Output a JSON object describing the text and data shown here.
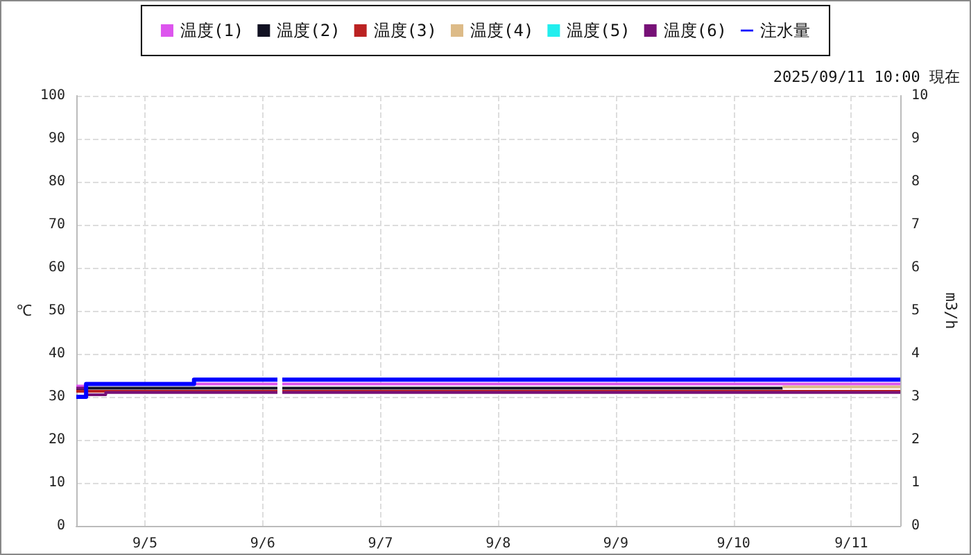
{
  "chart_data": {
    "type": "step",
    "subtitle": "2025/09/11 10:00 現在",
    "ylabel": "℃",
    "y2label": "m3/h",
    "x": [
      "2025-09-04T10:00",
      "2025-09-04T12:00",
      "2025-09-04T16:00",
      "2025-09-05T10:00",
      "2025-09-06T02:00",
      "2025-09-06T03:00",
      "2025-09-06T04:00",
      "2025-09-10T10:00",
      "2025-09-11T10:00"
    ],
    "series": [
      {
        "name": "温度(1)",
        "color": "#dd55ee",
        "values": [
          32.5,
          33,
          33,
          33,
          33,
          null,
          33,
          33,
          33
        ]
      },
      {
        "name": "温度(2)",
        "color": "#111122",
        "x": [
          "2025-09-04T10:00",
          "2025-09-04T12:00",
          "2025-09-04T16:00",
          "2025-09-05T10:00",
          "2025-09-06T02:00",
          "2025-09-06T03:00",
          "2025-09-06T04:00",
          "2025-09-10T10:00"
        ],
        "values": [
          31.5,
          32,
          32,
          32,
          32,
          null,
          32,
          32
        ]
      },
      {
        "name": "温度(3)",
        "color": "#bb2222",
        "values": [
          31.3,
          31.3,
          31.3,
          31.3,
          31.3,
          null,
          31.3,
          31.3,
          31.3
        ]
      },
      {
        "name": "温度(4)",
        "color": "#ddbb88",
        "values": [
          null,
          null,
          null,
          null,
          null,
          null,
          null,
          32.3,
          32.3
        ]
      },
      {
        "name": "温度(5)",
        "color": "#22eeee",
        "values": [
          null,
          null,
          null,
          null,
          null,
          null,
          null,
          null,
          null
        ]
      },
      {
        "name": "温度(6)",
        "color": "#771177",
        "values": [
          32,
          30.5,
          31,
          31,
          31,
          null,
          31,
          31,
          31
        ]
      },
      {
        "name": "注水量",
        "color": "#0000ff",
        "axis": "y2",
        "values": [
          3.0,
          3.3,
          3.3,
          3.4,
          3.4,
          null,
          3.4,
          3.4,
          3.4
        ]
      }
    ],
    "xlim": [
      "2025-09-04T10:00",
      "2025-09-11T10:00"
    ],
    "xticks": [
      {
        "value": "2025-09-05",
        "label": "9/5"
      },
      {
        "value": "2025-09-06",
        "label": "9/6"
      },
      {
        "value": "2025-09-07",
        "label": "9/7"
      },
      {
        "value": "2025-09-08",
        "label": "9/8"
      },
      {
        "value": "2025-09-09",
        "label": "9/9"
      },
      {
        "value": "2025-09-10",
        "label": "9/10"
      },
      {
        "value": "2025-09-11",
        "label": "9/11"
      }
    ],
    "ylim": [
      0,
      100
    ],
    "yticks": [
      0,
      10,
      20,
      30,
      40,
      50,
      60,
      70,
      80,
      90,
      100
    ],
    "y2lim": [
      0,
      10
    ],
    "y2ticks": [
      0,
      1,
      2,
      3,
      4,
      5,
      6,
      7,
      8,
      9,
      10
    ],
    "grid": true,
    "legend": "top"
  }
}
